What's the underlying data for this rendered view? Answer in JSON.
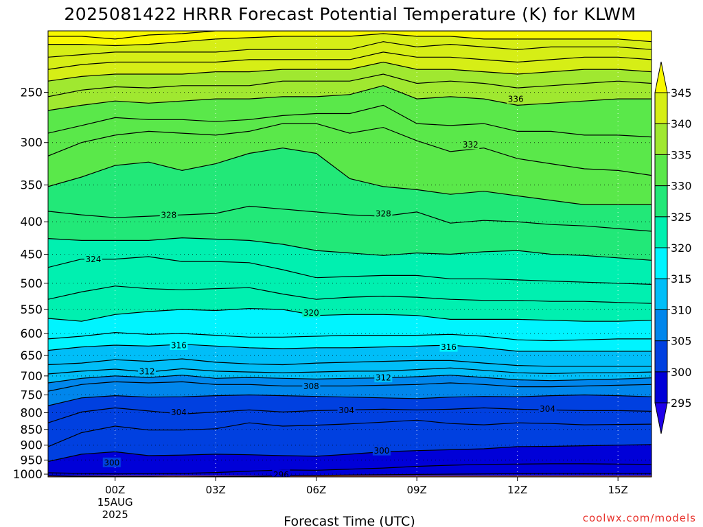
{
  "chart_data": {
    "type": "heatmap",
    "title": "2025081422 HRRR Forecast Potential Temperature (K) for KLWM",
    "xlabel": "Forecast Time (UTC)",
    "credit": "coolwx.com/models",
    "x_ticks": [
      {
        "hour": 0,
        "label": "00Z",
        "sub1": "15AUG",
        "sub2": "2025"
      },
      {
        "hour": 3,
        "label": "03Z"
      },
      {
        "hour": 6,
        "label": "06Z"
      },
      {
        "hour": 9,
        "label": "09Z"
      },
      {
        "hour": 12,
        "label": "12Z"
      },
      {
        "hour": 15,
        "label": "15Z"
      }
    ],
    "x_hours": [
      -2,
      -1,
      0,
      1,
      2,
      3,
      4,
      5,
      6,
      7,
      8,
      9,
      10,
      11,
      12,
      13,
      14,
      15,
      16
    ],
    "xlim_hours": [
      -2,
      16
    ],
    "ylim_hpa": [
      1010,
      200
    ],
    "y_ticks": [
      250,
      300,
      350,
      400,
      450,
      500,
      550,
      600,
      650,
      700,
      750,
      800,
      850,
      900,
      950,
      1000
    ],
    "colorbar": {
      "levels": [
        295,
        300,
        305,
        310,
        315,
        320,
        325,
        330,
        335,
        340,
        345
      ],
      "colors": [
        "#1f00ea",
        "#0000d8",
        "#0040e0",
        "#0086ec",
        "#00bef8",
        "#00f4ff",
        "#00f0b0",
        "#22e878",
        "#5ae84a",
        "#a0e830",
        "#d6ee16",
        "#f8f800"
      ]
    },
    "isentropes": [
      {
        "theta": 296,
        "p": [
          1006,
          1008,
          1009,
          1009,
          1010,
          1009,
          1008,
          1006,
          1005,
          1003,
          1002,
          1001,
          1000,
          999,
          998,
          997,
          997,
          997,
          997
        ]
      },
      {
        "theta": 298,
        "p": [
          995,
          997,
          999,
          998,
          997,
          994,
          989,
          985,
          986,
          982,
          978,
          972,
          968,
          965,
          964,
          963,
          963,
          964,
          965
        ]
      },
      {
        "theta": 300,
        "p": [
          955,
          930,
          922,
          935,
          933,
          930,
          932,
          935,
          937,
          930,
          922,
          918,
          915,
          912,
          905,
          904,
          902,
          900,
          898
        ]
      },
      {
        "theta": 302,
        "p": [
          905,
          860,
          840,
          852,
          852,
          848,
          830,
          840,
          837,
          833,
          828,
          822,
          832,
          836,
          830,
          832,
          836,
          835,
          834
        ]
      },
      {
        "theta": 304,
        "p": [
          830,
          798,
          786,
          795,
          804,
          798,
          792,
          798,
          794,
          792,
          790,
          792,
          790,
          786,
          790,
          792,
          794,
          794,
          796
        ]
      },
      {
        "theta": 306,
        "p": [
          780,
          758,
          752,
          756,
          755,
          752,
          750,
          752,
          754,
          756,
          758,
          760,
          756,
          754,
          755,
          752,
          750,
          752,
          755
        ]
      },
      {
        "theta": 308,
        "p": [
          740,
          722,
          715,
          718,
          715,
          722,
          722,
          726,
          726,
          726,
          724,
          722,
          718,
          722,
          728,
          728,
          726,
          724,
          722
        ]
      },
      {
        "theta": 310,
        "p": [
          718,
          706,
          700,
          704,
          698,
          706,
          704,
          706,
          708,
          706,
          705,
          702,
          698,
          704,
          710,
          712,
          710,
          708,
          705
        ]
      },
      {
        "theta": 312,
        "p": [
          695,
          688,
          683,
          690,
          682,
          688,
          690,
          692,
          690,
          688,
          688,
          684,
          680,
          686,
          692,
          694,
          692,
          692,
          690
        ]
      },
      {
        "theta": 314,
        "p": [
          672,
          668,
          660,
          664,
          658,
          666,
          670,
          672,
          668,
          666,
          664,
          662,
          662,
          668,
          674,
          676,
          676,
          676,
          676
        ]
      },
      {
        "theta": 316,
        "p": [
          638,
          630,
          626,
          628,
          624,
          628,
          632,
          634,
          632,
          632,
          630,
          628,
          626,
          632,
          640,
          640,
          640,
          640,
          640
        ]
      },
      {
        "theta": 318,
        "p": [
          612,
          606,
          598,
          602,
          600,
          604,
          608,
          608,
          606,
          604,
          604,
          604,
          602,
          606,
          614,
          616,
          614,
          612,
          612
        ]
      },
      {
        "theta": 320,
        "p": [
          568,
          574,
          560,
          554,
          550,
          552,
          548,
          550,
          562,
          560,
          560,
          562,
          570,
          570,
          570,
          572,
          574,
          574,
          572
        ]
      },
      {
        "theta": 322,
        "p": [
          530,
          516,
          505,
          510,
          512,
          510,
          508,
          520,
          530,
          526,
          524,
          526,
          530,
          532,
          532,
          534,
          534,
          536,
          538
        ]
      },
      {
        "theta": 324,
        "p": [
          472,
          458,
          458,
          454,
          462,
          462,
          464,
          476,
          490,
          488,
          486,
          486,
          492,
          492,
          494,
          496,
          498,
          500,
          502
        ]
      },
      {
        "theta": 326,
        "p": [
          425,
          428,
          428,
          428,
          424,
          426,
          428,
          434,
          444,
          448,
          452,
          448,
          450,
          446,
          444,
          450,
          452,
          456,
          460
        ]
      },
      {
        "theta": 328,
        "p": [
          385,
          390,
          394,
          392,
          390,
          388,
          378,
          382,
          386,
          390,
          392,
          386,
          402,
          398,
          400,
          404,
          406,
          410,
          414
        ]
      },
      {
        "theta": 330,
        "p": [
          352,
          340,
          326,
          322,
          332,
          324,
          312,
          306,
          312,
          342,
          352,
          356,
          362,
          358,
          364,
          370,
          376,
          376,
          376
        ]
      },
      {
        "theta": 332,
        "p": [
          315,
          300,
          292,
          288,
          290,
          292,
          288,
          280,
          280,
          290,
          284,
          298,
          310,
          306,
          318,
          324,
          330,
          332,
          338
        ]
      },
      {
        "theta": 334,
        "p": [
          290,
          282,
          274,
          276,
          276,
          278,
          276,
          272,
          270,
          270,
          262,
          280,
          282,
          280,
          288,
          288,
          292,
          292,
          294
        ]
      },
      {
        "theta": 336,
        "p": [
          267,
          262,
          258,
          260,
          258,
          256,
          256,
          254,
          254,
          252,
          244,
          256,
          254,
          256,
          262,
          260,
          258,
          256,
          256
        ]
      },
      {
        "theta": 338,
        "p": [
          254,
          248,
          245,
          246,
          244,
          244,
          244,
          240,
          240,
          240,
          234,
          242,
          240,
          242,
          246,
          244,
          242,
          240,
          242
        ]
      },
      {
        "theta": 340,
        "p": [
          240,
          236,
          234,
          234,
          234,
          232,
          232,
          230,
          230,
          230,
          224,
          230,
          230,
          232,
          234,
          232,
          230,
          230,
          232
        ]
      },
      {
        "theta": 342,
        "p": [
          230,
          226,
          224,
          224,
          224,
          224,
          222,
          222,
          222,
          222,
          216,
          220,
          220,
          222,
          224,
          222,
          220,
          220,
          222
        ]
      },
      {
        "theta": 344,
        "p": [
          220,
          218,
          216,
          216,
          216,
          216,
          214,
          214,
          214,
          214,
          208,
          212,
          210,
          212,
          214,
          212,
          212,
          212,
          214
        ]
      },
      {
        "theta": 346,
        "p": [
          210,
          210,
          211,
          210,
          208,
          206,
          205,
          204,
          204,
          204,
          202,
          204,
          204,
          206,
          206,
          206,
          206,
          206,
          208
        ]
      },
      {
        "theta": 348,
        "p": [
          204,
          204,
          206,
          203,
          202,
          200,
          200,
          200,
          200,
          200,
          200,
          200,
          200,
          200,
          200,
          200,
          200,
          200,
          200
        ]
      }
    ],
    "contour_labels": [
      {
        "text": "336",
        "hour": 11.95,
        "p": 256
      },
      {
        "text": "332",
        "hour": 10.6,
        "p": 302
      },
      {
        "text": "328",
        "hour": 1.6,
        "p": 390
      },
      {
        "text": "328",
        "hour": 8.0,
        "p": 388
      },
      {
        "text": "324",
        "hour": -0.65,
        "p": 458
      },
      {
        "text": "320",
        "hour": 5.85,
        "p": 556
      },
      {
        "text": "316",
        "hour": 1.9,
        "p": 626
      },
      {
        "text": "316",
        "hour": 9.95,
        "p": 630
      },
      {
        "text": "312",
        "hour": 0.95,
        "p": 688
      },
      {
        "text": "312",
        "hour": 8.0,
        "p": 704
      },
      {
        "text": "308",
        "hour": 5.85,
        "p": 726
      },
      {
        "text": "304",
        "hour": 1.9,
        "p": 798
      },
      {
        "text": "304",
        "hour": 6.9,
        "p": 792
      },
      {
        "text": "304",
        "hour": 12.9,
        "p": 788
      },
      {
        "text": "300",
        "hour": -0.1,
        "p": 958
      },
      {
        "text": "300",
        "hour": 7.95,
        "p": 918
      },
      {
        "text": "296",
        "hour": 4.95,
        "p": 1001
      }
    ]
  }
}
